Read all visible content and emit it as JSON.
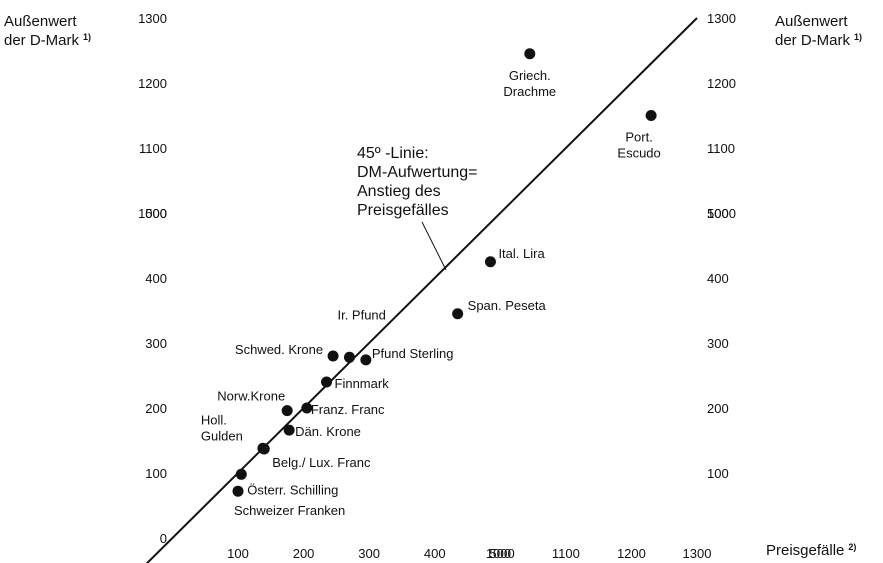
{
  "chart_data": {
    "type": "scatter",
    "y_axis_title": [
      "Außenwert",
      "der D-Mark"
    ],
    "y_axis_title_note": "1)",
    "x_axis_title": "Preisgefälle",
    "x_axis_title_note": "2)",
    "x_ticks": [
      "100",
      "200",
      "300",
      "400",
      "500",
      "1000",
      "1100",
      "1200",
      "1300"
    ],
    "y_ticks_left": [
      "0",
      "100",
      "200",
      "300",
      "400",
      "500",
      "1000",
      "1100",
      "1200",
      "1300"
    ],
    "y_ticks_right": [
      "100",
      "200",
      "300",
      "400",
      "500",
      "1000",
      "1100",
      "1200",
      "1300"
    ],
    "axis_scale": "piecewise: 0–500 linear, then break, 1000–1300 linear",
    "reference_line": {
      "label": [
        "45º -Linie:",
        "DM-Aufwertung=",
        "Anstieg des",
        "Preisgefälles"
      ],
      "slope": 1
    },
    "points": [
      {
        "name": "Griech. Drachme",
        "x": 1045,
        "y": 1245
      },
      {
        "name": "Port. Escudo",
        "x": 1230,
        "y": 1150
      },
      {
        "name": "Ital. Lira",
        "x": 485,
        "y": 425
      },
      {
        "name": "Span. Peseta",
        "x": 435,
        "y": 345
      },
      {
        "name": "Ir. Pfund",
        "x": 270,
        "y": 278
      },
      {
        "name": "Schwed. Krone",
        "x": 245,
        "y": 280
      },
      {
        "name": "Pfund Sterling",
        "x": 295,
        "y": 274
      },
      {
        "name": "Finnmark",
        "x": 235,
        "y": 240
      },
      {
        "name": "Norw.Krone",
        "x": 175,
        "y": 196
      },
      {
        "name": "Franz. Franc",
        "x": 205,
        "y": 200
      },
      {
        "name": "Dän. Krone",
        "x": 178,
        "y": 166
      },
      {
        "name": "Holl. Gulden",
        "x": 138,
        "y": 138
      },
      {
        "name": "Belg./ Lux. Franc",
        "x": 140,
        "y": 137
      },
      {
        "name": "Österr. Schilling",
        "x": 105,
        "y": 98
      },
      {
        "name": "Schweizer Franken",
        "x": 100,
        "y": 72
      }
    ]
  }
}
